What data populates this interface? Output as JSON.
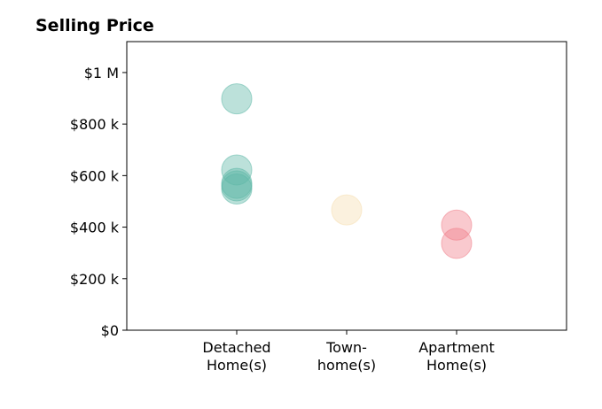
{
  "chart_data": {
    "type": "scatter",
    "title": "Selling Price",
    "xlabel": "",
    "ylabel": "",
    "categories": [
      "Detached\nHome(s)",
      "Town-\nhome(s)",
      "Apartment\nHome(s)"
    ],
    "xlim": [
      0,
      4
    ],
    "ylim": [
      0,
      1120000
    ],
    "y_ticks": [
      0,
      200000,
      400000,
      600000,
      800000,
      1000000
    ],
    "y_tick_labels": [
      "$0",
      "$200 k",
      "$400 k",
      "$600 k",
      "$800 k",
      "$1 M"
    ],
    "grid": false,
    "series": [
      {
        "color": "#5fb8a8",
        "points": [
          {
            "x": 1,
            "y": 898000
          },
          {
            "x": 1,
            "y": 622000
          },
          {
            "x": 1,
            "y": 570000
          },
          {
            "x": 1,
            "y": 560000
          },
          {
            "x": 1,
            "y": 548000
          }
        ]
      },
      {
        "color": "#f5deb0",
        "points": [
          {
            "x": 2,
            "y": 467000
          }
        ]
      },
      {
        "color": "#f07f8a",
        "points": [
          {
            "x": 3,
            "y": 408000
          },
          {
            "x": 3,
            "y": 337000
          }
        ]
      }
    ]
  }
}
